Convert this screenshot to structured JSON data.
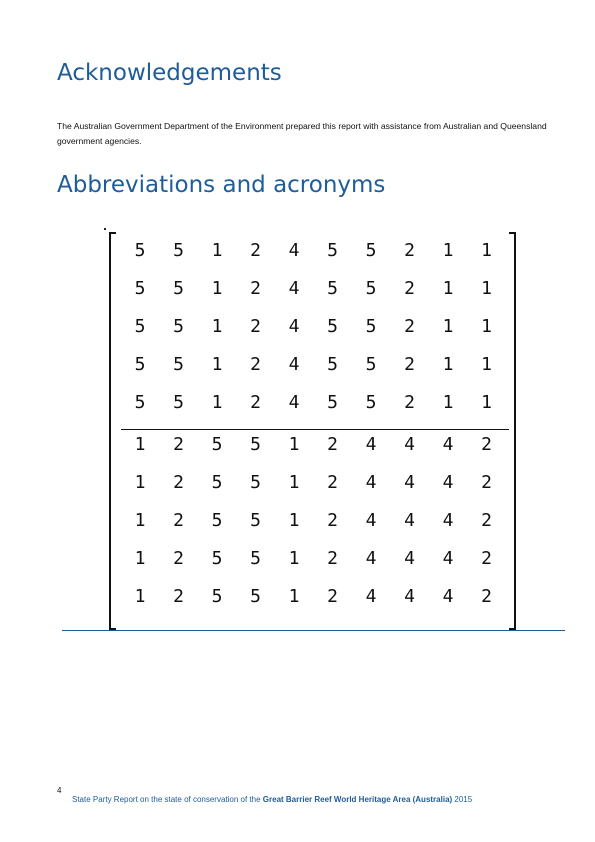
{
  "acknowledgements": {
    "heading": "Acknowledgements",
    "body": "The Australian Government Department of the Environment prepared this report with assistance from Australian and Queensland government agencies."
  },
  "abbreviations": {
    "heading": "Abbreviations and acronyms"
  },
  "matrix": {
    "upper_rows": [
      [
        "5",
        "5",
        "1",
        "2",
        "4",
        "5",
        "5",
        "2",
        "1",
        "1"
      ],
      [
        "5",
        "5",
        "1",
        "2",
        "4",
        "5",
        "5",
        "2",
        "1",
        "1"
      ],
      [
        "5",
        "5",
        "1",
        "2",
        "4",
        "5",
        "5",
        "2",
        "1",
        "1"
      ],
      [
        "5",
        "5",
        "1",
        "2",
        "4",
        "5",
        "5",
        "2",
        "1",
        "1"
      ],
      [
        "5",
        "5",
        "1",
        "2",
        "4",
        "5",
        "5",
        "2",
        "1",
        "1"
      ]
    ],
    "lower_rows": [
      [
        "1",
        "2",
        "5",
        "5",
        "1",
        "2",
        "4",
        "4",
        "4",
        "2"
      ],
      [
        "1",
        "2",
        "5",
        "5",
        "1",
        "2",
        "4",
        "4",
        "4",
        "2"
      ],
      [
        "1",
        "2",
        "5",
        "5",
        "1",
        "2",
        "4",
        "4",
        "4",
        "2"
      ],
      [
        "1",
        "2",
        "5",
        "5",
        "1",
        "2",
        "4",
        "4",
        "4",
        "2"
      ],
      [
        "1",
        "2",
        "5",
        "5",
        "1",
        "2",
        "4",
        "4",
        "4",
        "2"
      ]
    ]
  },
  "footer": {
    "page_number": "4",
    "text_prefix": "State Party Report on the state of conservation of the ",
    "text_bold": "Great Barrier Reef World Heritage Area (Australia)",
    "text_suffix": " 2015"
  }
}
